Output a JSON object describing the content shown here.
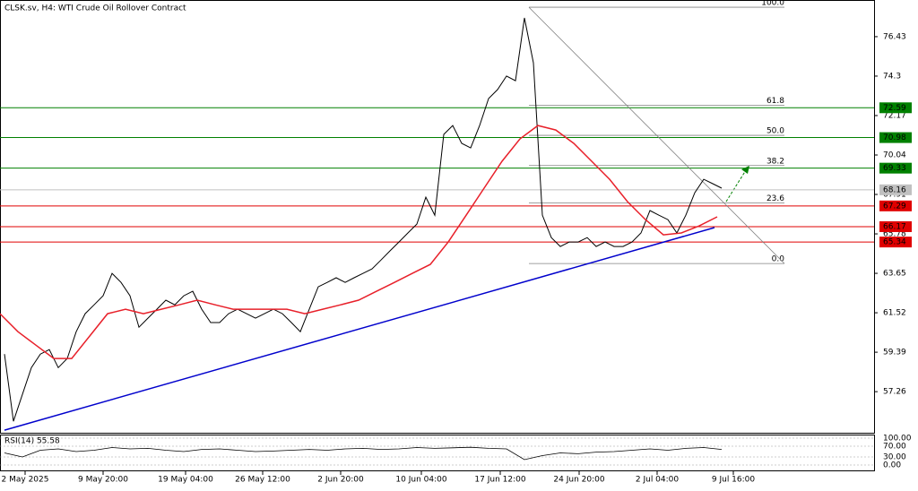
{
  "chart_data": {
    "type": "line",
    "title": "CLSK.sv, H4:  WTI Crude Oil Rollover Contract",
    "xlim": [
      -0.5,
      97
    ],
    "ylim": [
      55.04,
      78.41
    ],
    "yticks": [
      76.43,
      74.3,
      72.17,
      70.04,
      67.91,
      65.78,
      63.65,
      61.52,
      59.39,
      57.26
    ],
    "xticks": [
      {
        "value": 2.3,
        "label": "2 May 2025"
      },
      {
        "value": 11,
        "label": "9 May 20:00"
      },
      {
        "value": 20.2,
        "label": "19 May 04:00"
      },
      {
        "value": 28.8,
        "label": "26 May 12:00"
      },
      {
        "value": 37.5,
        "label": "2 Jun 20:00"
      },
      {
        "value": 46.5,
        "label": "10 Jun 04:00"
      },
      {
        "value": 55.3,
        "label": "17 Jun 12:00"
      },
      {
        "value": 64.1,
        "label": "24 Jun 20:00"
      },
      {
        "value": 72.8,
        "label": "2 Jul 04:00"
      },
      {
        "value": 81.3,
        "label": "9 Jul 16:00"
      }
    ],
    "series": [
      {
        "color": "#000000",
        "x": [
          0,
          1,
          2,
          3,
          4,
          5,
          6,
          7,
          8,
          9,
          10,
          11,
          12,
          13,
          14,
          15,
          16,
          17,
          18,
          19,
          20,
          21,
          22,
          23,
          24,
          25,
          26,
          27,
          28,
          29,
          30,
          31,
          32,
          33,
          34,
          35,
          36,
          37,
          38,
          39,
          40,
          41,
          42,
          43,
          44,
          45,
          46,
          47,
          48,
          49,
          50,
          51,
          52,
          53,
          54,
          55,
          56,
          57,
          58,
          59,
          60,
          61,
          62,
          63,
          64,
          65,
          66,
          67,
          68,
          69,
          70,
          71,
          72,
          73,
          74,
          75,
          76,
          77,
          78,
          79,
          80
        ],
        "values": [
          59.29,
          55.66,
          57.11,
          58.56,
          59.29,
          59.53,
          58.56,
          59.05,
          60.5,
          61.47,
          61.95,
          62.44,
          63.65,
          63.16,
          62.44,
          60.74,
          61.23,
          61.71,
          62.2,
          61.95,
          62.44,
          62.68,
          61.71,
          60.99,
          60.99,
          61.47,
          61.71,
          61.47,
          61.23,
          61.47,
          61.71,
          61.47,
          60.99,
          60.5,
          61.71,
          62.92,
          63.16,
          63.41,
          63.16,
          63.41,
          63.65,
          63.89,
          64.37,
          64.86,
          65.34,
          65.83,
          66.31,
          67.76,
          66.79,
          71.15,
          71.63,
          70.67,
          70.42,
          71.63,
          73.09,
          73.57,
          74.3,
          74.05,
          77.44,
          75.02,
          66.79,
          65.58,
          65.1,
          65.34,
          65.34,
          65.58,
          65.1,
          65.34,
          65.1,
          65.1,
          65.34,
          65.83,
          67.04,
          66.79,
          66.55,
          65.83,
          66.79,
          68.0,
          68.73,
          68.49,
          68.25
        ]
      },
      {
        "color": "#e8202a",
        "x": [
          -0.5,
          1.5,
          3.5,
          5.5,
          7.5,
          9.5,
          11.5,
          13.5,
          15.5,
          17.5,
          19.5,
          21.5,
          23.5,
          25.5,
          27.5,
          29.5,
          31.5,
          33.5,
          35.5,
          37.5,
          39.5,
          41.5,
          43.5,
          45.5,
          47.5,
          49.5,
          51.5,
          53.5,
          55.5,
          57.5,
          59.5,
          61.5,
          63.5,
          65.5,
          67.5,
          69.5,
          71.5,
          73.5,
          75.5,
          77.5,
          79.5
        ],
        "values": [
          61.47,
          60.5,
          59.77,
          59.05,
          59.05,
          60.26,
          61.47,
          61.71,
          61.47,
          61.71,
          61.95,
          62.2,
          61.95,
          61.71,
          61.71,
          61.71,
          61.71,
          61.47,
          61.71,
          61.95,
          62.2,
          62.68,
          63.16,
          63.65,
          64.13,
          65.34,
          66.79,
          68.25,
          69.7,
          70.91,
          71.63,
          71.39,
          70.67,
          69.7,
          68.73,
          67.52,
          66.55,
          65.73,
          65.83,
          66.21,
          66.7
        ]
      }
    ],
    "trendlines": [
      {
        "color": "#0000cc",
        "x": [
          0,
          79.2
        ],
        "values": [
          55.18,
          66.12
        ]
      },
      {
        "color": "#808080",
        "x": [
          58.5,
          87
        ],
        "values": [
          78.02,
          64.18
        ]
      }
    ],
    "levels": [
      {
        "value": 72.59,
        "color": "#008000"
      },
      {
        "value": 70.98,
        "color": "#008000"
      },
      {
        "value": 69.33,
        "color": "#008000"
      },
      {
        "value": 68.16,
        "color": "#c0c0c0"
      },
      {
        "value": 67.29,
        "color": "#e00000"
      },
      {
        "value": 66.17,
        "color": "#e00000"
      },
      {
        "value": 65.34,
        "color": "#e00000"
      }
    ],
    "fib": {
      "x": [
        58.5,
        87
      ],
      "levels": [
        {
          "ratio": "100.0",
          "price": 78.02
        },
        {
          "ratio": "61.8",
          "price": 72.73
        },
        {
          "ratio": "50.0",
          "price": 71.1
        },
        {
          "ratio": "38.2",
          "price": 69.47
        },
        {
          "ratio": "23.6",
          "price": 67.45
        },
        {
          "ratio": "0.0",
          "price": 64.18
        }
      ]
    },
    "rsi": {
      "title": "RSI(14) 55.58",
      "ylim": [
        0,
        100
      ],
      "color": "#000000",
      "yticks": [
        {
          "value": 100,
          "label": "100.00"
        },
        {
          "value": 70,
          "label": "70.00"
        },
        {
          "value": 30,
          "label": "30.00"
        },
        {
          "value": 0,
          "label": "0.00"
        }
      ],
      "x": [
        0,
        2,
        4,
        6,
        8,
        10,
        12,
        14,
        16,
        18,
        20,
        22,
        24,
        26,
        28,
        30,
        32,
        34,
        36,
        38,
        40,
        42,
        44,
        46,
        48,
        50,
        52,
        54,
        56,
        58,
        60,
        62,
        64,
        66,
        68,
        70,
        72,
        74,
        76,
        78,
        80
      ],
      "values": [
        45,
        30,
        55,
        60,
        50,
        55,
        65,
        60,
        62,
        55,
        50,
        58,
        60,
        55,
        50,
        52,
        55,
        58,
        55,
        60,
        62,
        58,
        60,
        65,
        62,
        64,
        66,
        62,
        60,
        20,
        35,
        45,
        42,
        48,
        50,
        55,
        60,
        55,
        62,
        65,
        58
      ]
    }
  }
}
